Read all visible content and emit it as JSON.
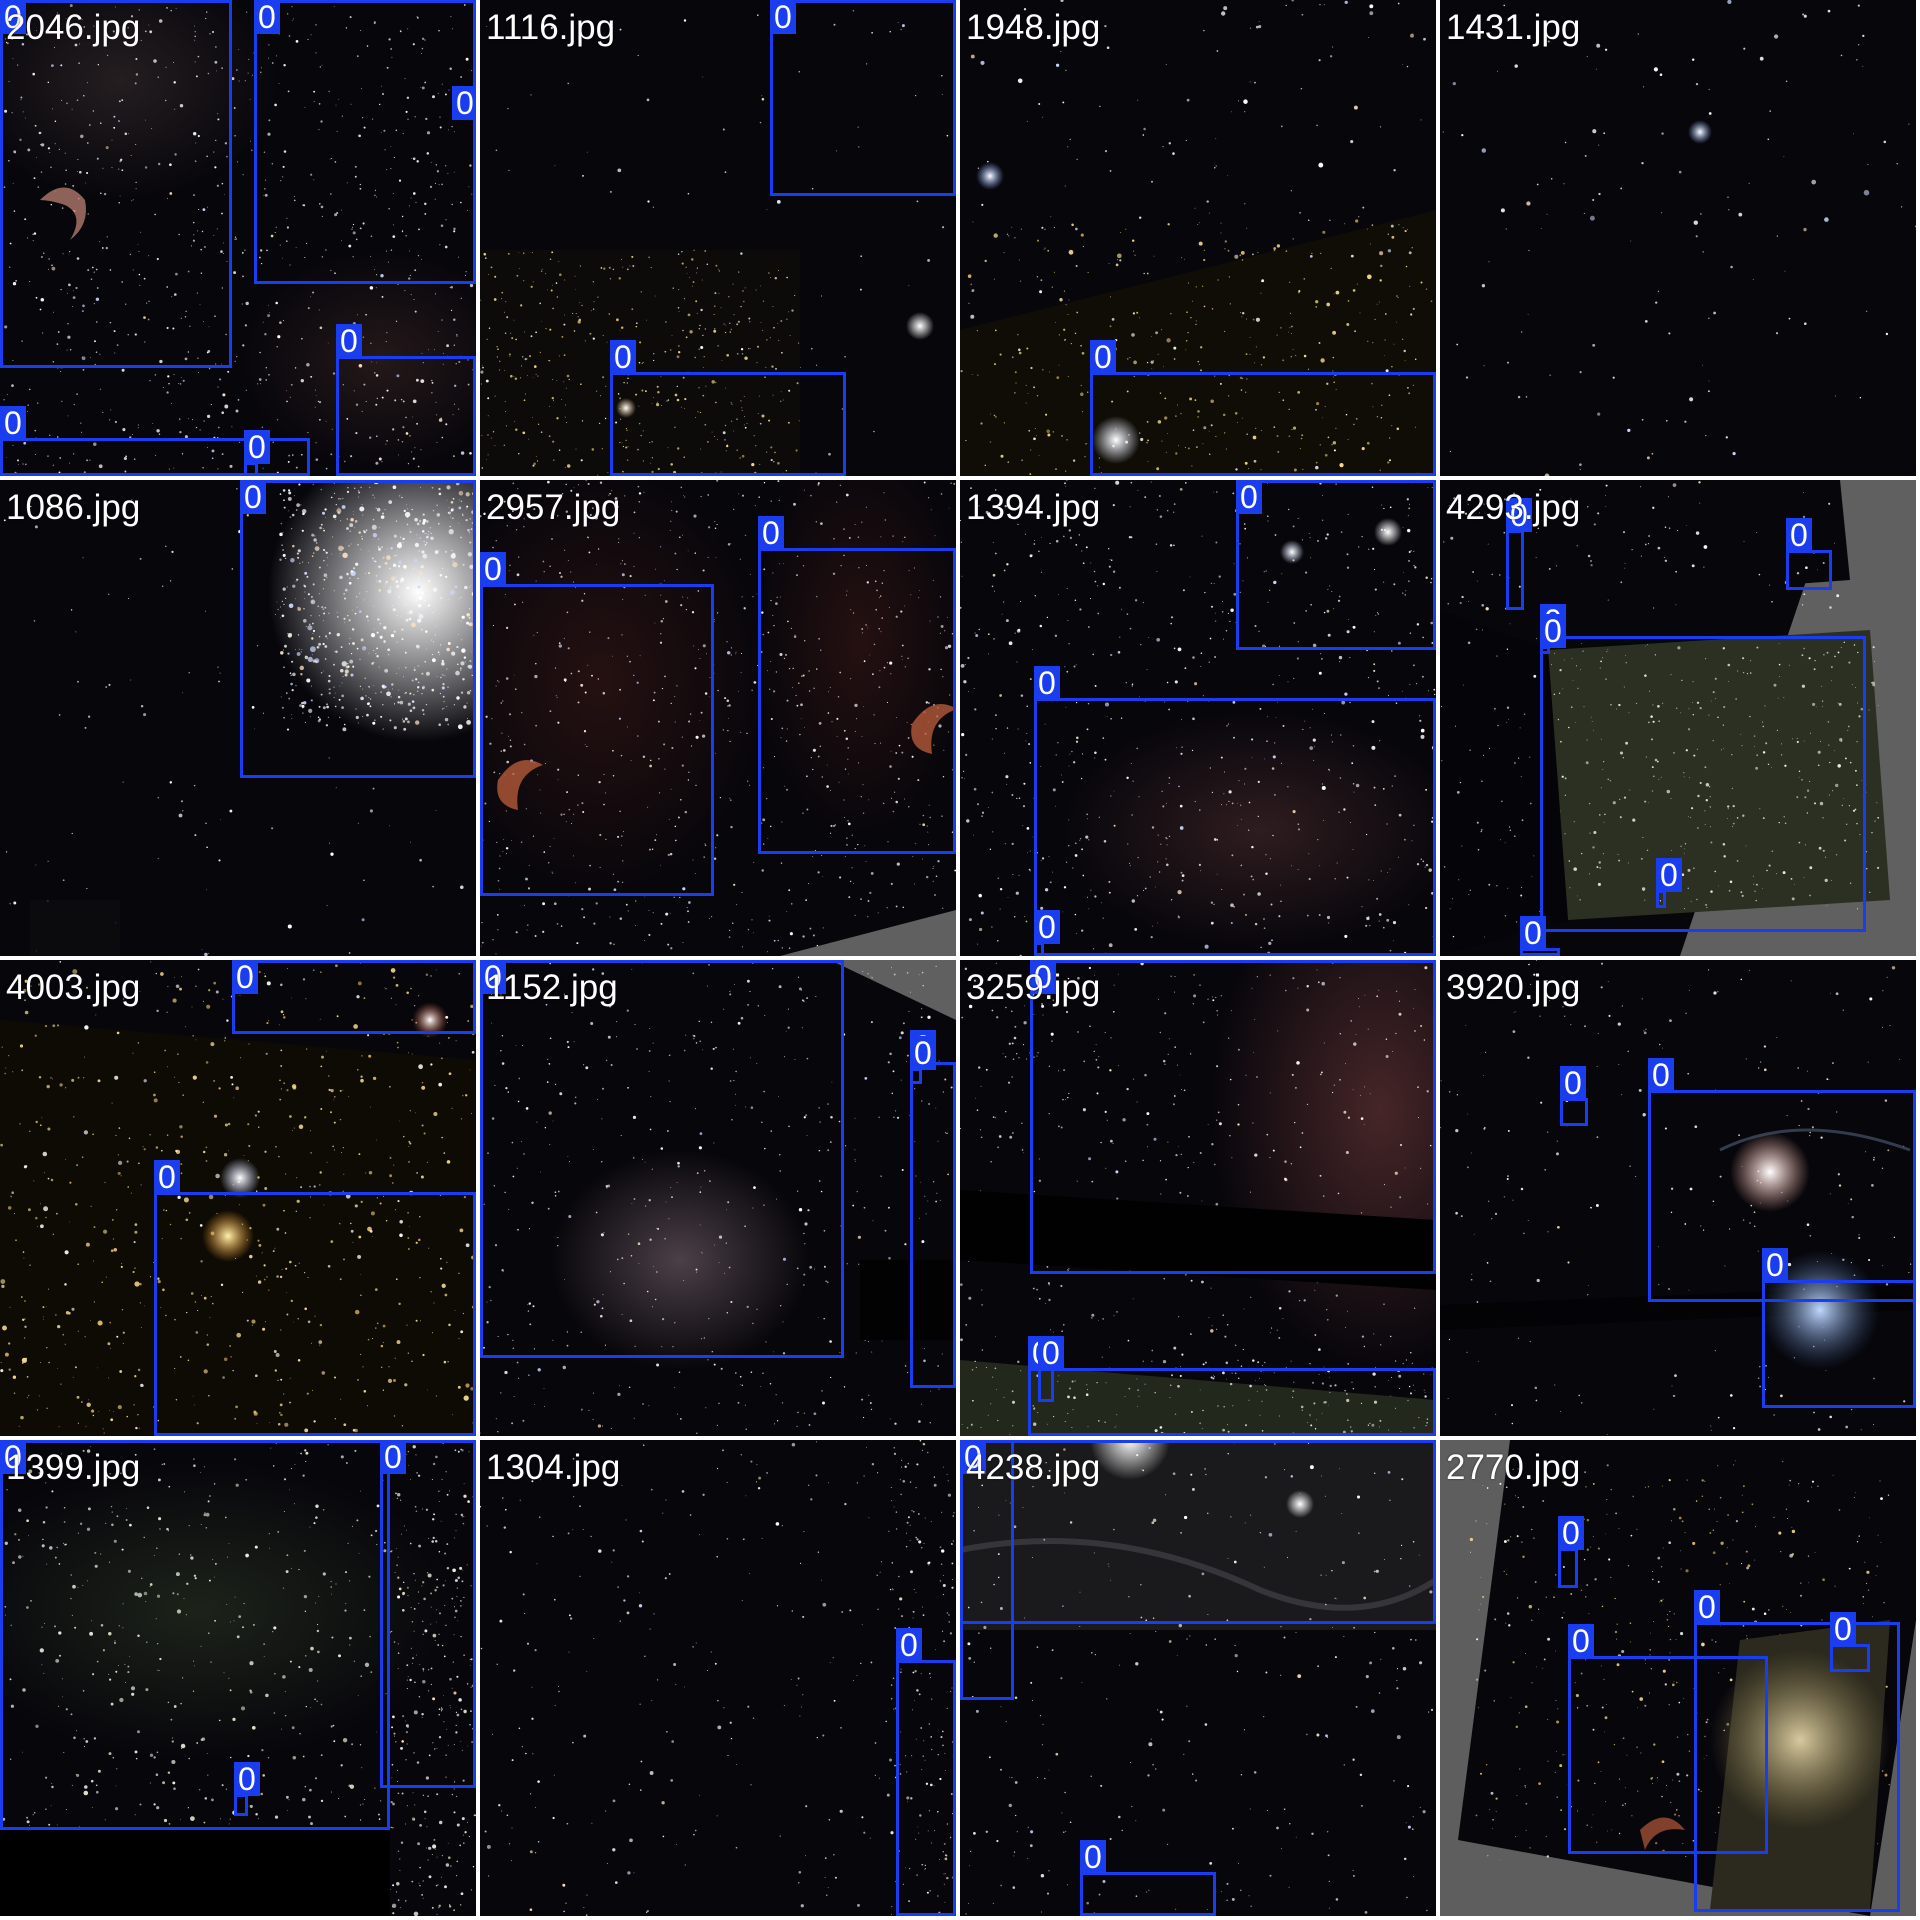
{
  "colors": {
    "box_color": "#1a3df0",
    "background": "#07060b",
    "grid_gap": "#ffffff",
    "filler": "#606060"
  },
  "tiles": [
    {
      "name": "2046.jpg",
      "theme": "dense-nebula-crescent"
    },
    {
      "name": "1116.jpg",
      "theme": "sparse-mixed"
    },
    {
      "name": "1948.jpg",
      "theme": "bright-stars-gold-field"
    },
    {
      "name": "1431.jpg",
      "theme": "sparse-bright"
    },
    {
      "name": "1086.jpg",
      "theme": "globular-cluster"
    },
    {
      "name": "2957.jpg",
      "theme": "twin-crescent"
    },
    {
      "name": "1394.jpg",
      "theme": "cluster-and-haze"
    },
    {
      "name": "4293.jpg",
      "theme": "rotated-green-field"
    },
    {
      "name": "4003.jpg",
      "theme": "gold-star-field"
    },
    {
      "name": "1152.jpg",
      "theme": "eagle-nebula"
    },
    {
      "name": "3259.jpg",
      "theme": "pink-nebula-band"
    },
    {
      "name": "3920.jpg",
      "theme": "bright-star-veil"
    },
    {
      "name": "1399.jpg",
      "theme": "green-starfield"
    },
    {
      "name": "1304.jpg",
      "theme": "sparse-dim"
    },
    {
      "name": "4238.jpg",
      "theme": "veil-streaks"
    },
    {
      "name": "2770.jpg",
      "theme": "andromeda-rotated"
    }
  ],
  "box_label": "0"
}
